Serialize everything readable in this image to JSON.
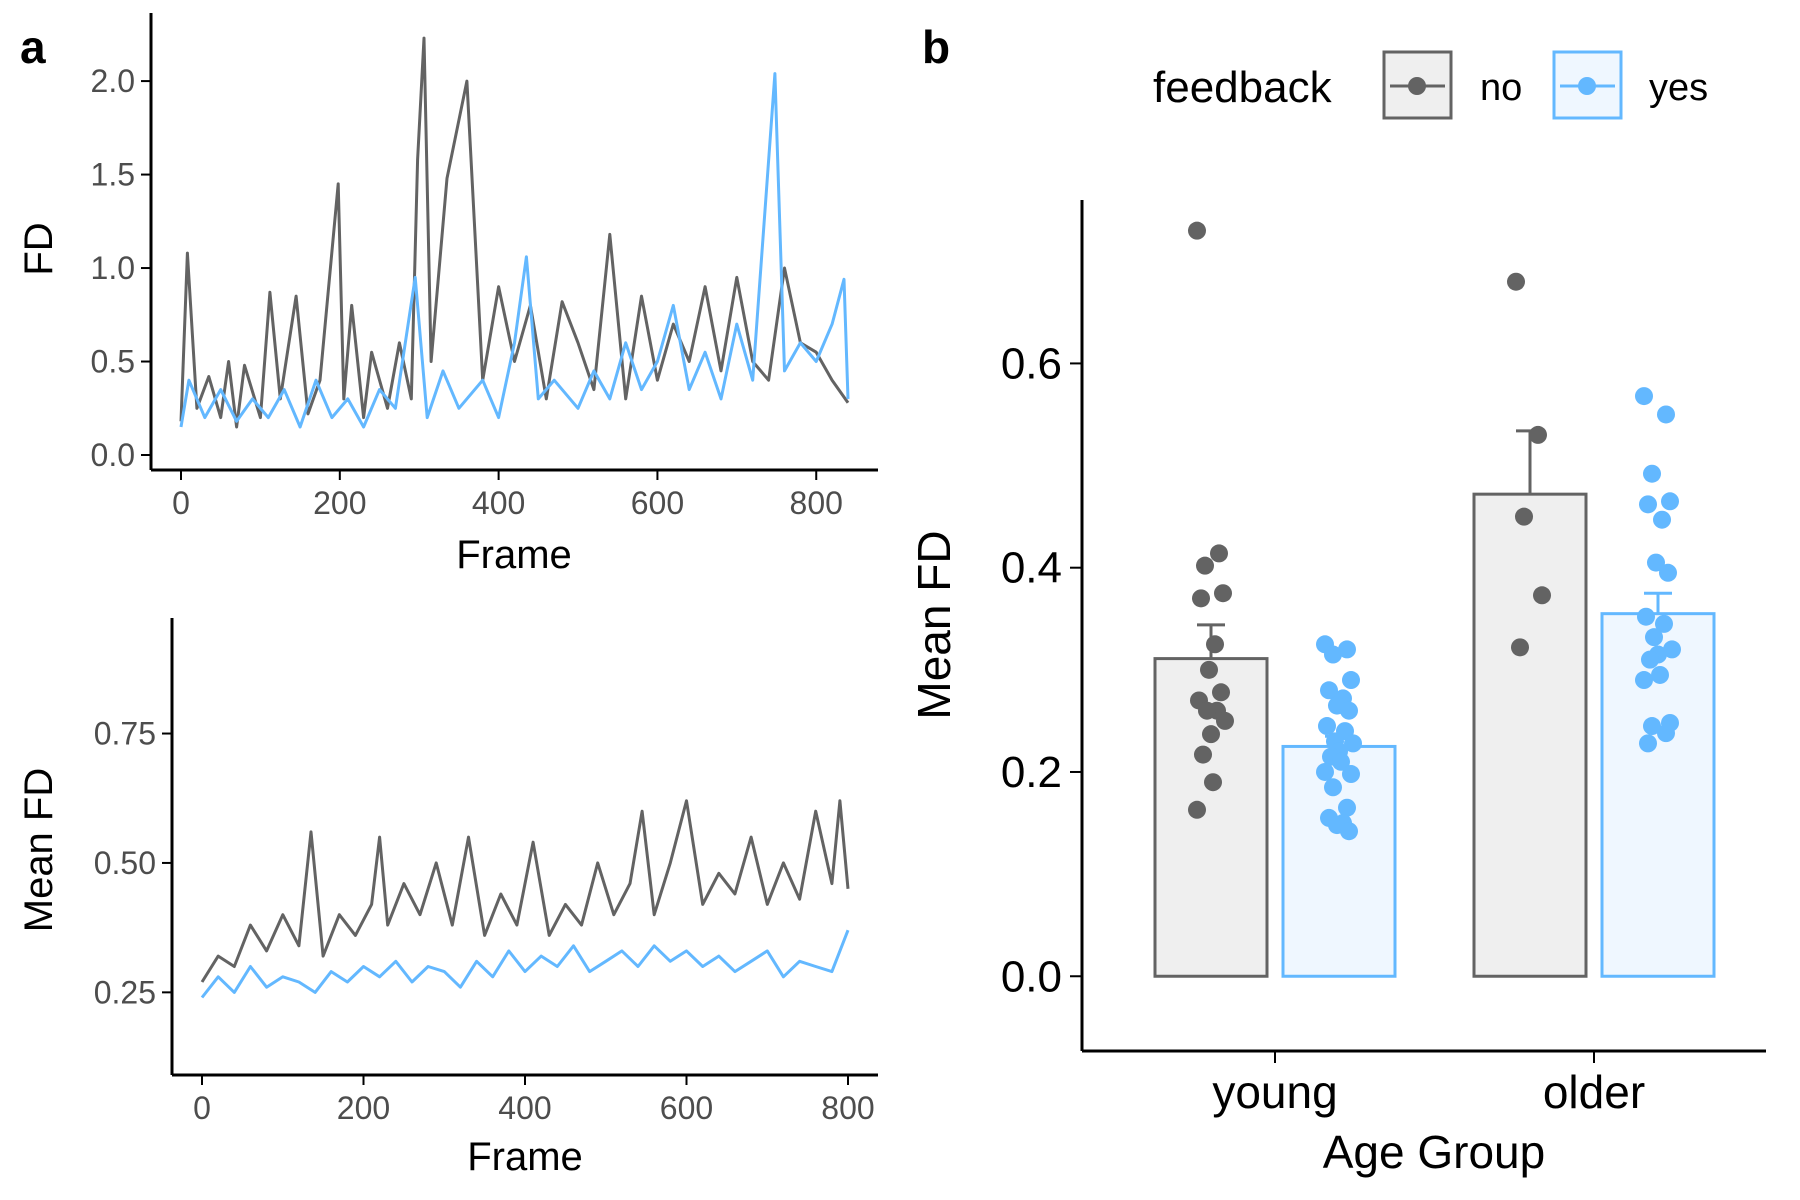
{
  "colors": {
    "no": "#636363",
    "yes": "#63b8ff",
    "no_fill": "#efefef",
    "yes_fill": "#eff7ff",
    "axis": "#000000",
    "tick_text": "#4d4d4d"
  },
  "chart_data": [
    {
      "panel_label": "a",
      "type": "line",
      "xlabel": "Frame",
      "ylabel": "FD",
      "xlim": [
        0,
        840
      ],
      "ylim": [
        0,
        2.3
      ],
      "xticks": [
        0,
        200,
        400,
        600,
        800
      ],
      "yticks": [
        0,
        0.5,
        1,
        1.5,
        2
      ],
      "ytick_labels": [
        "0.0",
        "0.5",
        "1.0",
        "1.5",
        "2.0"
      ],
      "series": [
        {
          "name": "no",
          "x": [
            0,
            8,
            20,
            35,
            50,
            60,
            70,
            80,
            100,
            112,
            125,
            145,
            160,
            175,
            198,
            205,
            215,
            230,
            240,
            260,
            275,
            290,
            298,
            306,
            315,
            335,
            360,
            380,
            400,
            420,
            440,
            460,
            480,
            500,
            520,
            540,
            560,
            580,
            600,
            620,
            640,
            660,
            680,
            700,
            720,
            740,
            760,
            780,
            800,
            820,
            840
          ],
          "y": [
            0.18,
            1.08,
            0.25,
            0.42,
            0.2,
            0.5,
            0.15,
            0.48,
            0.2,
            0.87,
            0.3,
            0.85,
            0.22,
            0.4,
            1.45,
            0.3,
            0.8,
            0.2,
            0.55,
            0.25,
            0.6,
            0.3,
            1.58,
            2.23,
            0.5,
            1.48,
            2.0,
            0.4,
            0.9,
            0.5,
            0.8,
            0.3,
            0.82,
            0.6,
            0.35,
            1.18,
            0.3,
            0.85,
            0.4,
            0.7,
            0.5,
            0.9,
            0.45,
            0.95,
            0.5,
            0.4,
            1.0,
            0.6,
            0.55,
            0.4,
            0.28
          ]
        },
        {
          "name": "yes",
          "x": [
            0,
            10,
            30,
            50,
            70,
            90,
            110,
            130,
            150,
            170,
            190,
            210,
            230,
            250,
            270,
            295,
            310,
            330,
            350,
            380,
            400,
            420,
            435,
            450,
            470,
            500,
            520,
            540,
            560,
            580,
            600,
            620,
            640,
            660,
            680,
            700,
            720,
            748,
            760,
            780,
            800,
            820,
            835,
            840
          ],
          "y": [
            0.15,
            0.4,
            0.2,
            0.35,
            0.18,
            0.3,
            0.2,
            0.35,
            0.15,
            0.4,
            0.2,
            0.3,
            0.15,
            0.35,
            0.25,
            0.95,
            0.2,
            0.45,
            0.25,
            0.4,
            0.2,
            0.6,
            1.06,
            0.3,
            0.4,
            0.25,
            0.45,
            0.3,
            0.6,
            0.35,
            0.5,
            0.8,
            0.35,
            0.55,
            0.3,
            0.7,
            0.4,
            2.04,
            0.45,
            0.6,
            0.5,
            0.7,
            0.94,
            0.3
          ]
        }
      ]
    },
    {
      "type": "line",
      "xlabel": "Frame",
      "ylabel": "Mean FD",
      "xlim": [
        0,
        800
      ],
      "ylim": [
        0.1,
        0.95
      ],
      "xticks": [
        0,
        200,
        400,
        600,
        800
      ],
      "yticks": [
        0.25,
        0.5,
        0.75
      ],
      "ytick_labels": [
        "0.25",
        "0.50",
        "0.75"
      ],
      "series": [
        {
          "name": "no",
          "x": [
            0,
            20,
            40,
            60,
            80,
            100,
            120,
            135,
            150,
            170,
            190,
            210,
            220,
            230,
            250,
            270,
            290,
            310,
            330,
            350,
            370,
            390,
            410,
            430,
            450,
            470,
            490,
            510,
            530,
            545,
            560,
            580,
            600,
            620,
            640,
            660,
            680,
            700,
            720,
            740,
            760,
            780,
            790,
            800
          ],
          "y": [
            0.27,
            0.32,
            0.3,
            0.38,
            0.33,
            0.4,
            0.34,
            0.56,
            0.32,
            0.4,
            0.36,
            0.42,
            0.55,
            0.38,
            0.46,
            0.4,
            0.5,
            0.38,
            0.55,
            0.36,
            0.44,
            0.38,
            0.54,
            0.36,
            0.42,
            0.38,
            0.5,
            0.4,
            0.46,
            0.6,
            0.4,
            0.5,
            0.62,
            0.42,
            0.48,
            0.44,
            0.55,
            0.42,
            0.5,
            0.43,
            0.6,
            0.46,
            0.62,
            0.45
          ]
        },
        {
          "name": "yes",
          "x": [
            0,
            20,
            40,
            60,
            80,
            100,
            120,
            140,
            160,
            180,
            200,
            220,
            240,
            260,
            280,
            300,
            320,
            340,
            360,
            380,
            400,
            420,
            440,
            460,
            480,
            500,
            520,
            540,
            560,
            580,
            600,
            620,
            640,
            660,
            680,
            700,
            720,
            740,
            760,
            780,
            800
          ],
          "y": [
            0.24,
            0.28,
            0.25,
            0.3,
            0.26,
            0.28,
            0.27,
            0.25,
            0.29,
            0.27,
            0.3,
            0.28,
            0.31,
            0.27,
            0.3,
            0.29,
            0.26,
            0.31,
            0.28,
            0.33,
            0.29,
            0.32,
            0.3,
            0.34,
            0.29,
            0.31,
            0.33,
            0.3,
            0.34,
            0.31,
            0.33,
            0.3,
            0.32,
            0.29,
            0.31,
            0.33,
            0.28,
            0.31,
            0.3,
            0.29,
            0.37
          ]
        }
      ]
    },
    {
      "panel_label": "b",
      "type": "bar",
      "xlabel": "Age Group",
      "ylabel": "Mean FD",
      "categories": [
        "young",
        "older"
      ],
      "ylim": [
        -0.035,
        0.76
      ],
      "yticks": [
        0,
        0.2,
        0.4,
        0.6
      ],
      "ytick_labels": [
        "0.0",
        "0.2",
        "0.4",
        "0.6"
      ],
      "legend": {
        "title": "feedback",
        "position": "top",
        "entries": [
          "no",
          "yes"
        ]
      },
      "series": [
        {
          "name": "no",
          "values": [
            0.311,
            0.472
          ],
          "error": [
            0.033,
            0.062
          ]
        },
        {
          "name": "yes",
          "values": [
            0.225,
            0.355
          ],
          "error": [
            0.01,
            0.02
          ]
        }
      ],
      "points": {
        "no": [
          [
            0.73,
            0.414,
            0.402,
            0.375,
            0.37,
            0.325,
            0.3,
            0.278,
            0.27,
            0.26,
            0.26,
            0.25,
            0.237,
            0.217,
            0.19,
            0.163
          ],
          [
            0.68,
            0.53,
            0.45,
            0.373,
            0.322
          ]
        ],
        "yes": [
          [
            0.325,
            0.32,
            0.315,
            0.29,
            0.28,
            0.272,
            0.265,
            0.26,
            0.245,
            0.24,
            0.23,
            0.228,
            0.22,
            0.215,
            0.21,
            0.2,
            0.198,
            0.185,
            0.165,
            0.155,
            0.15,
            0.148,
            0.142
          ],
          [
            0.568,
            0.55,
            0.492,
            0.465,
            0.462,
            0.447,
            0.405,
            0.395,
            0.352,
            0.345,
            0.332,
            0.32,
            0.315,
            0.31,
            0.295,
            0.29,
            0.248,
            0.245,
            0.238,
            0.228
          ]
        ]
      }
    }
  ]
}
